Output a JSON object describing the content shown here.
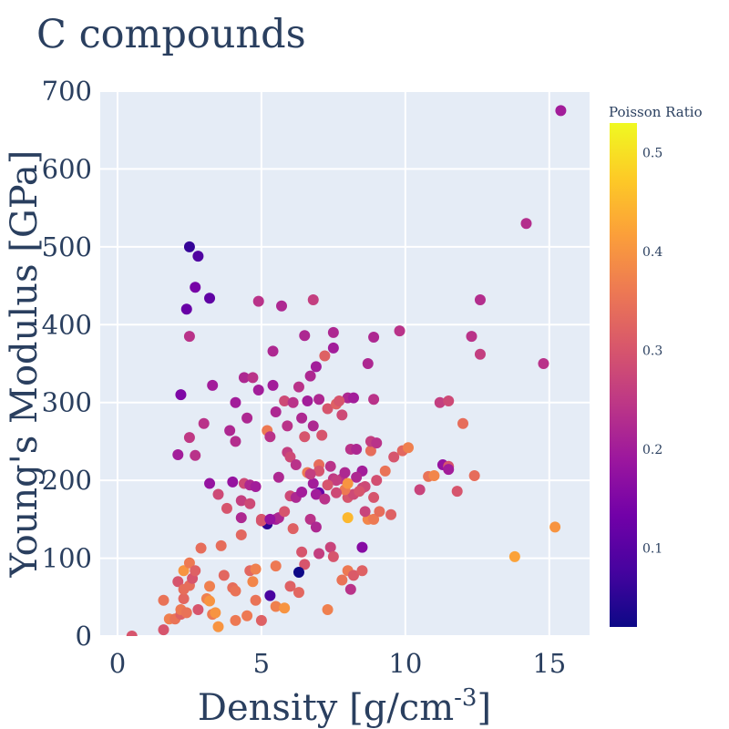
{
  "chart_data": {
    "type": "scatter",
    "title": "C compounds",
    "xlabel_main": "Density [g/cm",
    "xlabel_sup": "-3",
    "xlabel_tail": "]",
    "ylabel": "Young's Modulus [GPa]",
    "colorbar_title": "Poisson Ratio",
    "xlim": [
      -0.6,
      16.4
    ],
    "ylim": [
      0,
      700
    ],
    "x_ticks": [
      0,
      5,
      10,
      15
    ],
    "y_ticks": [
      0,
      100,
      200,
      300,
      400,
      500,
      600,
      700
    ],
    "color_range": [
      0.02,
      0.53
    ],
    "colorbar_ticks": [
      0.1,
      0.2,
      0.3,
      0.4,
      0.5
    ],
    "colorscale": "plasma",
    "grid": true,
    "plot_bg": "#e5ecf6",
    "points": [
      [
        0.5,
        0,
        0.3
      ],
      [
        1.6,
        8,
        0.3
      ],
      [
        1.6,
        46,
        0.35
      ],
      [
        1.8,
        22,
        0.37
      ],
      [
        2.0,
        22,
        0.35
      ],
      [
        2.1,
        70,
        0.3
      ],
      [
        2.2,
        28,
        0.32
      ],
      [
        2.2,
        34,
        0.36
      ],
      [
        2.3,
        48,
        0.33
      ],
      [
        2.3,
        84,
        0.4
      ],
      [
        2.3,
        60,
        0.34
      ],
      [
        2.4,
        30,
        0.35
      ],
      [
        2.5,
        94,
        0.36
      ],
      [
        2.5,
        65,
        0.34
      ],
      [
        2.6,
        74,
        0.3
      ],
      [
        2.7,
        84,
        0.32
      ],
      [
        2.9,
        113,
        0.34
      ],
      [
        2.8,
        34,
        0.3
      ],
      [
        3.1,
        48,
        0.37
      ],
      [
        3.2,
        45,
        0.4
      ],
      [
        3.2,
        64,
        0.37
      ],
      [
        3.3,
        28,
        0.36
      ],
      [
        3.4,
        30,
        0.4
      ],
      [
        3.5,
        12,
        0.4
      ],
      [
        3.6,
        116,
        0.34
      ],
      [
        3.7,
        78,
        0.33
      ],
      [
        4.0,
        62,
        0.34
      ],
      [
        4.1,
        58,
        0.35
      ],
      [
        4.1,
        20,
        0.36
      ],
      [
        4.3,
        130,
        0.33
      ],
      [
        4.5,
        26,
        0.36
      ],
      [
        4.6,
        84,
        0.33
      ],
      [
        4.7,
        70,
        0.38
      ],
      [
        4.8,
        86,
        0.37
      ],
      [
        4.8,
        46,
        0.35
      ],
      [
        5.0,
        20,
        0.32
      ],
      [
        5.0,
        150,
        0.3
      ],
      [
        5.5,
        38,
        0.37
      ],
      [
        5.8,
        36,
        0.4
      ],
      [
        5.5,
        90,
        0.36
      ],
      [
        6.0,
        64,
        0.32
      ],
      [
        6.1,
        138,
        0.32
      ],
      [
        6.3,
        56,
        0.33
      ],
      [
        6.5,
        92,
        0.3
      ],
      [
        6.4,
        108,
        0.3
      ],
      [
        7.0,
        106,
        0.26
      ],
      [
        7.3,
        34,
        0.37
      ],
      [
        7.4,
        114,
        0.27
      ],
      [
        7.5,
        102,
        0.3
      ],
      [
        7.8,
        72,
        0.35
      ],
      [
        8.0,
        84,
        0.36
      ],
      [
        8.2,
        78,
        0.31
      ],
      [
        8.5,
        84,
        0.32
      ],
      [
        8.1,
        60,
        0.24
      ],
      [
        8.0,
        152,
        0.45
      ],
      [
        8.7,
        150,
        0.38
      ],
      [
        8.9,
        150,
        0.36
      ],
      [
        9.1,
        160,
        0.34
      ],
      [
        9.5,
        156,
        0.32
      ],
      [
        5.2,
        144,
        0.05
      ],
      [
        5.3,
        52,
        0.08
      ],
      [
        6.3,
        82,
        0.02
      ],
      [
        5.5,
        150,
        0.2
      ],
      [
        5.6,
        152,
        0.22
      ],
      [
        5.8,
        160,
        0.3
      ],
      [
        6.0,
        180,
        0.28
      ],
      [
        6.2,
        178,
        0.22
      ],
      [
        6.4,
        185,
        0.2
      ],
      [
        6.7,
        150,
        0.24
      ],
      [
        6.9,
        140,
        0.22
      ],
      [
        7.0,
        184,
        0.12
      ],
      [
        6.9,
        182,
        0.2
      ],
      [
        7.2,
        176,
        0.24
      ],
      [
        7.5,
        202,
        0.25
      ],
      [
        7.8,
        202,
        0.24
      ],
      [
        8.0,
        178,
        0.3
      ],
      [
        8.2,
        182,
        0.28
      ],
      [
        8.5,
        190,
        0.26
      ],
      [
        8.6,
        160,
        0.27
      ],
      [
        8.9,
        178,
        0.3
      ],
      [
        9.0,
        200,
        0.29
      ],
      [
        9.3,
        212,
        0.35
      ],
      [
        9.6,
        230,
        0.3
      ],
      [
        9.9,
        238,
        0.33
      ],
      [
        10.1,
        242,
        0.37
      ],
      [
        10.5,
        188,
        0.27
      ],
      [
        10.8,
        205,
        0.35
      ],
      [
        11.0,
        206,
        0.38
      ],
      [
        11.3,
        220,
        0.18
      ],
      [
        11.5,
        218,
        0.3
      ],
      [
        11.8,
        186,
        0.3
      ],
      [
        12.0,
        273,
        0.34
      ],
      [
        12.4,
        206,
        0.34
      ],
      [
        11.2,
        300,
        0.26
      ],
      [
        11.5,
        302,
        0.28
      ],
      [
        11.5,
        214,
        0.2
      ],
      [
        12.3,
        385,
        0.24
      ],
      [
        12.6,
        362,
        0.26
      ],
      [
        12.6,
        432,
        0.23
      ],
      [
        13.8,
        102,
        0.42
      ],
      [
        14.2,
        530,
        0.23
      ],
      [
        14.8,
        350,
        0.24
      ],
      [
        15.2,
        140,
        0.4
      ],
      [
        15.4,
        675,
        0.2
      ],
      [
        2.1,
        233,
        0.2
      ],
      [
        2.2,
        310,
        0.15
      ],
      [
        2.4,
        420,
        0.12
      ],
      [
        2.5,
        385,
        0.24
      ],
      [
        2.5,
        255,
        0.25
      ],
      [
        2.5,
        500,
        0.06
      ],
      [
        2.7,
        448,
        0.14
      ],
      [
        2.7,
        232,
        0.24
      ],
      [
        2.8,
        488,
        0.09
      ],
      [
        3.0,
        273,
        0.24
      ],
      [
        3.2,
        434,
        0.11
      ],
      [
        3.2,
        196,
        0.18
      ],
      [
        3.3,
        322,
        0.2
      ],
      [
        3.5,
        182,
        0.28
      ],
      [
        3.8,
        164,
        0.3
      ],
      [
        3.9,
        264,
        0.22
      ],
      [
        4.0,
        198,
        0.18
      ],
      [
        4.1,
        250,
        0.23
      ],
      [
        4.1,
        300,
        0.2
      ],
      [
        4.3,
        174,
        0.26
      ],
      [
        4.3,
        152,
        0.22
      ],
      [
        4.4,
        332,
        0.22
      ],
      [
        4.4,
        196,
        0.28
      ],
      [
        4.5,
        280,
        0.22
      ],
      [
        4.6,
        194,
        0.22
      ],
      [
        4.6,
        170,
        0.28
      ],
      [
        4.7,
        332,
        0.24
      ],
      [
        4.8,
        192,
        0.2
      ],
      [
        4.9,
        316,
        0.2
      ],
      [
        4.9,
        430,
        0.24
      ],
      [
        5.0,
        148,
        0.3
      ],
      [
        5.2,
        264,
        0.36
      ],
      [
        5.3,
        256,
        0.24
      ],
      [
        5.4,
        366,
        0.22
      ],
      [
        5.4,
        322,
        0.2
      ],
      [
        5.5,
        288,
        0.22
      ],
      [
        5.6,
        204,
        0.22
      ],
      [
        5.7,
        424,
        0.22
      ],
      [
        5.8,
        302,
        0.28
      ],
      [
        5.9,
        236,
        0.26
      ],
      [
        5.9,
        270,
        0.24
      ],
      [
        6.0,
        230,
        0.28
      ],
      [
        6.1,
        300,
        0.24
      ],
      [
        6.2,
        220,
        0.24
      ],
      [
        6.3,
        320,
        0.24
      ],
      [
        6.4,
        280,
        0.22
      ],
      [
        6.5,
        256,
        0.3
      ],
      [
        6.5,
        386,
        0.22
      ],
      [
        6.6,
        210,
        0.36
      ],
      [
        6.6,
        302,
        0.2
      ],
      [
        6.7,
        334,
        0.22
      ],
      [
        6.8,
        432,
        0.26
      ],
      [
        6.8,
        270,
        0.22
      ],
      [
        6.9,
        346,
        0.2
      ],
      [
        7.0,
        220,
        0.34
      ],
      [
        7.0,
        304,
        0.22
      ],
      [
        7.1,
        258,
        0.3
      ],
      [
        7.2,
        360,
        0.32
      ],
      [
        7.3,
        292,
        0.3
      ],
      [
        7.5,
        390,
        0.22
      ],
      [
        7.5,
        370,
        0.2
      ],
      [
        7.6,
        200,
        0.26
      ],
      [
        7.6,
        298,
        0.32
      ],
      [
        7.8,
        284,
        0.28
      ],
      [
        7.9,
        210,
        0.22
      ],
      [
        8.0,
        306,
        0.22
      ],
      [
        8.1,
        240,
        0.24
      ],
      [
        8.2,
        306,
        0.2
      ],
      [
        8.3,
        240,
        0.22
      ],
      [
        8.5,
        212,
        0.2
      ],
      [
        8.5,
        114,
        0.16
      ],
      [
        8.6,
        192,
        0.28
      ],
      [
        8.7,
        350,
        0.22
      ],
      [
        8.8,
        238,
        0.34
      ],
      [
        8.8,
        250,
        0.26
      ],
      [
        8.9,
        304,
        0.24
      ],
      [
        8.9,
        384,
        0.22
      ],
      [
        9.0,
        248,
        0.24
      ],
      [
        9.8,
        392,
        0.24
      ],
      [
        7.7,
        302,
        0.3
      ],
      [
        5.3,
        150,
        0.18
      ],
      [
        7.9,
        188,
        0.36
      ],
      [
        8.3,
        204,
        0.22
      ],
      [
        7.3,
        194,
        0.3
      ],
      [
        6.8,
        196,
        0.2
      ],
      [
        7.0,
        212,
        0.3
      ],
      [
        6.7,
        208,
        0.26
      ],
      [
        7.6,
        184,
        0.28
      ],
      [
        8.0,
        196,
        0.4
      ],
      [
        8.4,
        186,
        0.3
      ],
      [
        7.4,
        218,
        0.24
      ]
    ]
  }
}
